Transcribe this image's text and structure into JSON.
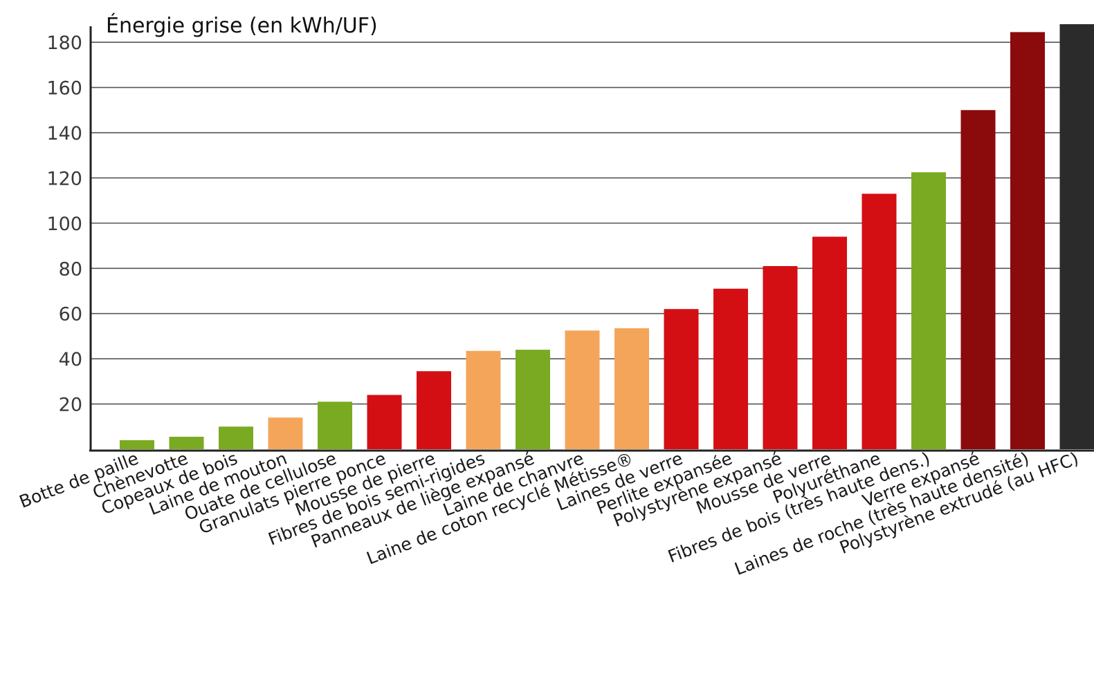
{
  "chart_data": {
    "type": "bar",
    "title": "Énergie grise (en kWh/UF)",
    "xlabel": "",
    "ylabel": "",
    "ylim": [
      0,
      188
    ],
    "yticks": [
      20,
      40,
      60,
      80,
      100,
      120,
      140,
      160,
      180
    ],
    "grid": true,
    "categories": [
      "Botte de paille",
      "Chènevotte",
      "Copeaux de bois",
      "Laine de mouton",
      "Ouate de cellulose",
      "Granulats pierre ponce",
      "Mousse de pierre",
      "Fibres de bois semi-rigides",
      "Panneaux de liège expansé",
      "Laine de chanvre",
      "Laine de coton recyclé Métisse®",
      "Laines de verre",
      "Perlite expansée",
      "Polystyrène expansé",
      "Mousse de verre",
      "Polyuréthane",
      "Fibres de bois (très haute dens.)",
      "Verre expansé",
      "Laines de roche (très haute densité)",
      "Polystyrène extrudé (au HFC)"
    ],
    "values": [
      4,
      5.5,
      10,
      14,
      21,
      24,
      34.5,
      43.5,
      44,
      52.5,
      53.5,
      62,
      71,
      81,
      94,
      113,
      122.5,
      150,
      184.5,
      188
    ],
    "colors": [
      "#7aaa22",
      "#7aaa22",
      "#7aaa22",
      "#f5a55a",
      "#7aaa22",
      "#d40f14",
      "#d40f14",
      "#f5a55a",
      "#7aaa22",
      "#f5a55a",
      "#f5a55a",
      "#d40f14",
      "#d40f14",
      "#d40f14",
      "#d40f14",
      "#d40f14",
      "#7aaa22",
      "#8b0a0c",
      "#8b0a0c",
      "#2b2b2b"
    ]
  }
}
